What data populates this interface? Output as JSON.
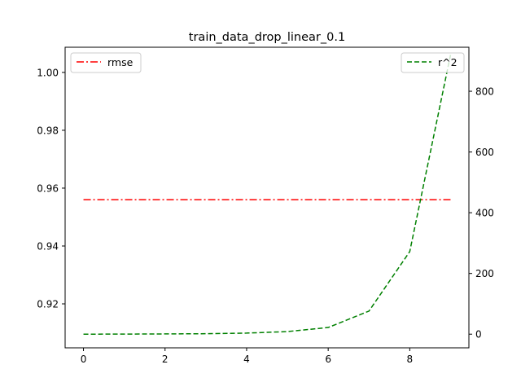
{
  "chart_data": {
    "type": "line",
    "title": "train_data_drop_linear_0.1",
    "x": [
      0,
      1,
      2,
      3,
      4,
      5,
      6,
      7,
      8,
      9
    ],
    "xlim": [
      -0.45,
      9.45
    ],
    "x_ticks": [
      0,
      2,
      4,
      6,
      8
    ],
    "left_axis": {
      "ylim": [
        0.9048,
        1.0087
      ],
      "ticks": [
        0.92,
        0.94,
        0.96,
        0.98,
        1.0
      ],
      "tick_labels": [
        "0.92",
        "0.94",
        "0.96",
        "0.98",
        "1.00"
      ]
    },
    "right_axis": {
      "ylim": [
        -45,
        945
      ],
      "ticks": [
        0,
        200,
        400,
        600,
        800
      ],
      "tick_labels": [
        "0",
        "200",
        "400",
        "600",
        "800"
      ]
    },
    "series": [
      {
        "name": "rmse",
        "axis": "left",
        "color": "#ff0000",
        "style": "dash-dot",
        "values": [
          0.956,
          0.956,
          0.956,
          0.956,
          0.956,
          0.956,
          0.956,
          0.956,
          0.956,
          0.956
        ]
      },
      {
        "name": "r^2",
        "axis": "right",
        "color": "#008000",
        "style": "dashed",
        "values": [
          0,
          0.3,
          0.8,
          1.5,
          3.5,
          8.5,
          22,
          76,
          272,
          920
        ]
      }
    ],
    "legends": [
      {
        "series": "rmse",
        "placement": "upper-left"
      },
      {
        "series": "r^2",
        "placement": "upper-right"
      }
    ],
    "grid": false
  }
}
